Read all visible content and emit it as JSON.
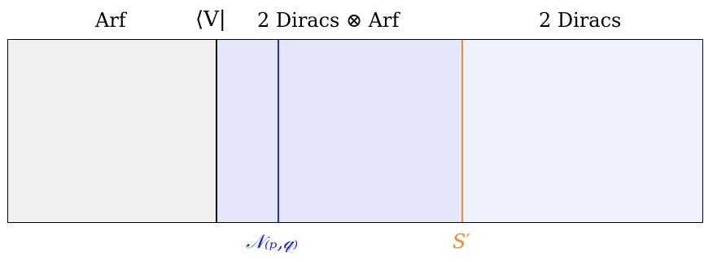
{
  "colors": {
    "left_region": "#f0f0f0",
    "middle_region": "#e4e6fb",
    "right_region": "#f0f1fe",
    "defect_line": "#000000",
    "n_line": "#1f2fd2",
    "s_line": "#f08a2a",
    "n_label": "#1f2fd2",
    "s_label": "#f08a2a"
  },
  "labels": {
    "top_left": "Arf",
    "top_defect": "⟨V|",
    "top_middle": "2 Diracs ⊗ Arf",
    "top_right": "2 Diracs",
    "bottom_n": "𝒩₍ₚ,𝓆₎",
    "bottom_s": "S′"
  }
}
